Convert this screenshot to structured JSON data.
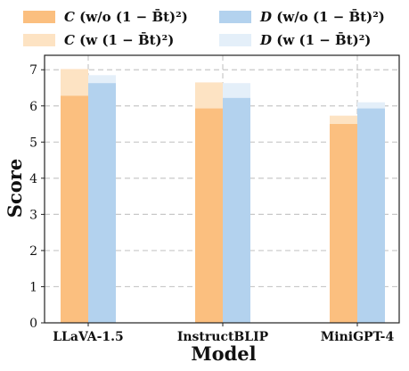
{
  "chart_data": {
    "type": "bar",
    "categories": [
      "LLaVA-1.5",
      "InstructBLIP",
      "MiniGPT-4"
    ],
    "series": [
      {
        "name": "C (w/o (1 − B̄t)²)",
        "legend_prefix": "C",
        "legend_suffix": " (w/o (1 − B̄t)²)",
        "color": "#fbbf7f",
        "values": [
          6.28,
          5.93,
          5.5
        ]
      },
      {
        "name": "C (w (1 − B̄t)²)",
        "legend_prefix": "C",
        "legend_suffix": " (w (1 − B̄t)²)",
        "color": "#fde3c3",
        "values": [
          7.02,
          6.65,
          5.73
        ]
      },
      {
        "name": "D (w/o (1 − B̄t)²)",
        "legend_prefix": "D",
        "legend_suffix": " (w/o (1 − B̄t)²)",
        "color": "#b3d2ee",
        "values": [
          6.63,
          6.22,
          5.93
        ]
      },
      {
        "name": "D (w (1 − B̄t)²)",
        "legend_prefix": "D",
        "legend_suffix": " (w (1 − B̄t)²)",
        "color": "#e4eff9",
        "values": [
          6.85,
          6.63,
          6.1
        ]
      }
    ],
    "xlabel": "Model",
    "ylabel": "Score",
    "ylim": [
      0,
      7.4
    ],
    "yticks": [
      "0",
      "1",
      "2",
      "3",
      "4",
      "5",
      "6",
      "7"
    ],
    "grid": true,
    "legend_position": "top"
  }
}
